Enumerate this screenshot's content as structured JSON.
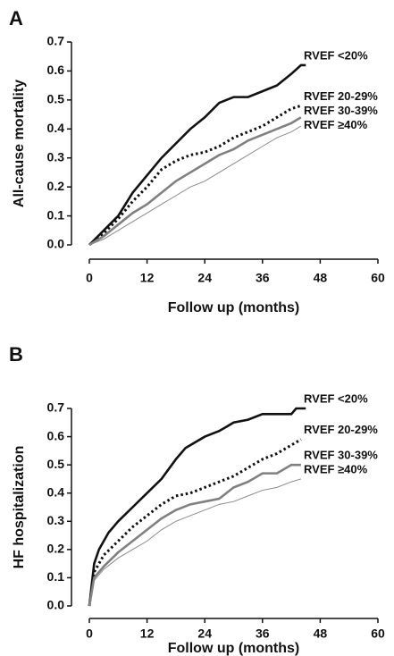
{
  "chart_data": [
    {
      "type": "line",
      "panel": "A",
      "ylabel": "All-cause mortality",
      "xlabel": "Follow up (months)",
      "xlim": [
        0,
        60
      ],
      "xticks": [
        0,
        12,
        24,
        36,
        48,
        60
      ],
      "ylim": [
        0,
        0.7
      ],
      "yticks": [
        {
          "value": 0,
          "label": "0.0"
        },
        0.1,
        0.2,
        0.3,
        0.4,
        0.5,
        0.6,
        0.7
      ],
      "series": [
        {
          "name": "RVEF <20%",
          "color": "#111111",
          "linestyle": "solid",
          "x": [
            0,
            3,
            6,
            9,
            12,
            15,
            18,
            21,
            24,
            27,
            30,
            33,
            36,
            39,
            42,
            44,
            45
          ],
          "values": [
            0,
            0.05,
            0.1,
            0.18,
            0.24,
            0.3,
            0.35,
            0.4,
            0.44,
            0.49,
            0.51,
            0.51,
            0.53,
            0.55,
            0.59,
            0.62,
            0.62
          ]
        },
        {
          "name": "RVEF 20-29%",
          "color": "#111111",
          "linestyle": "dotted",
          "x": [
            0,
            3,
            6,
            9,
            12,
            15,
            18,
            21,
            24,
            27,
            30,
            33,
            36,
            39,
            42,
            44
          ],
          "values": [
            0,
            0.04,
            0.09,
            0.15,
            0.2,
            0.26,
            0.29,
            0.31,
            0.32,
            0.34,
            0.37,
            0.39,
            0.41,
            0.44,
            0.47,
            0.48
          ]
        },
        {
          "name": "RVEF 30-39%",
          "color": "#808080",
          "linestyle": "solid",
          "x": [
            0,
            3,
            6,
            9,
            12,
            15,
            18,
            21,
            24,
            27,
            30,
            33,
            36,
            39,
            42,
            44
          ],
          "values": [
            0,
            0.03,
            0.07,
            0.11,
            0.14,
            0.18,
            0.22,
            0.25,
            0.28,
            0.31,
            0.33,
            0.36,
            0.38,
            0.4,
            0.42,
            0.44
          ]
        },
        {
          "name": "RVEF ≥40%",
          "color": "#8a8a8a",
          "linestyle": "thin",
          "x": [
            0,
            3,
            6,
            9,
            12,
            15,
            18,
            21,
            24,
            27,
            30,
            33,
            36,
            39,
            42,
            44
          ],
          "values": [
            0,
            0.02,
            0.05,
            0.08,
            0.11,
            0.14,
            0.17,
            0.2,
            0.22,
            0.25,
            0.28,
            0.31,
            0.34,
            0.37,
            0.39,
            0.41
          ]
        }
      ]
    },
    {
      "type": "line",
      "panel": "B",
      "ylabel": "HF hospitalization",
      "xlabel": "Follow up (months)",
      "xlim": [
        0,
        60
      ],
      "xticks": [
        0,
        12,
        24,
        36,
        48,
        60
      ],
      "ylim": [
        0,
        0.7
      ],
      "yticks": [
        {
          "value": 0,
          "label": "0.0"
        },
        0.1,
        0.2,
        0.3,
        0.4,
        0.5,
        0.6,
        0.7
      ],
      "series": [
        {
          "name": "RVEF <20%",
          "color": "#111111",
          "linestyle": "solid",
          "x": [
            0,
            1,
            2,
            4,
            6,
            9,
            12,
            15,
            18,
            20,
            24,
            27,
            30,
            33,
            36,
            39,
            42,
            43,
            45
          ],
          "values": [
            0,
            0.15,
            0.2,
            0.26,
            0.3,
            0.35,
            0.4,
            0.45,
            0.52,
            0.56,
            0.6,
            0.62,
            0.65,
            0.66,
            0.68,
            0.68,
            0.68,
            0.7,
            0.7
          ]
        },
        {
          "name": "RVEF 20-29%",
          "color": "#111111",
          "linestyle": "dotted",
          "x": [
            0,
            1,
            3,
            6,
            9,
            12,
            15,
            18,
            21,
            24,
            27,
            30,
            33,
            36,
            39,
            42,
            44
          ],
          "values": [
            0,
            0.12,
            0.18,
            0.23,
            0.28,
            0.32,
            0.36,
            0.39,
            0.4,
            0.42,
            0.44,
            0.46,
            0.49,
            0.52,
            0.54,
            0.57,
            0.59
          ]
        },
        {
          "name": "RVEF 30-39%",
          "color": "#808080",
          "linestyle": "solid",
          "x": [
            0,
            1,
            3,
            6,
            9,
            12,
            15,
            18,
            21,
            24,
            27,
            30,
            33,
            36,
            39,
            42,
            44
          ],
          "values": [
            0,
            0.1,
            0.14,
            0.19,
            0.23,
            0.27,
            0.31,
            0.34,
            0.36,
            0.37,
            0.38,
            0.42,
            0.44,
            0.47,
            0.47,
            0.5,
            0.5
          ]
        },
        {
          "name": "RVEF ≥40%",
          "color": "#8a8a8a",
          "linestyle": "thin",
          "x": [
            0,
            1,
            3,
            6,
            9,
            12,
            15,
            18,
            21,
            24,
            27,
            30,
            33,
            36,
            39,
            42,
            44
          ],
          "values": [
            0,
            0.09,
            0.13,
            0.17,
            0.2,
            0.23,
            0.27,
            0.3,
            0.32,
            0.34,
            0.36,
            0.37,
            0.39,
            0.41,
            0.42,
            0.44,
            0.45
          ]
        }
      ]
    }
  ]
}
